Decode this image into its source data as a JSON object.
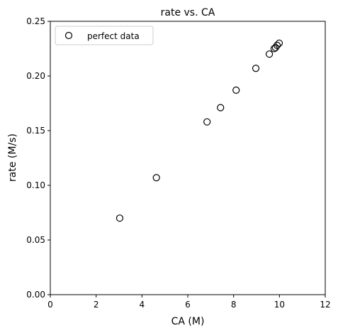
{
  "chart_data": {
    "type": "scatter",
    "title": "rate vs. CA",
    "xlabel": "CA (M)",
    "ylabel": "rate (M/s)",
    "xlim": [
      0,
      12
    ],
    "ylim": [
      0,
      0.25
    ],
    "xticks": [
      0,
      2,
      4,
      6,
      8,
      10,
      12
    ],
    "yticks": [
      0.0,
      0.05,
      0.1,
      0.15,
      0.2,
      0.25
    ],
    "xtick_labels": [
      "0",
      "2",
      "4",
      "6",
      "8",
      "10",
      "12"
    ],
    "ytick_labels": [
      "0.00",
      "0.05",
      "0.10",
      "0.15",
      "0.20",
      "0.25"
    ],
    "grid": false,
    "legend_position": "top-left",
    "series": [
      {
        "name": "perfect data",
        "marker": "open-circle",
        "color": "#000000",
        "x": [
          3.03,
          4.63,
          6.84,
          7.43,
          8.11,
          8.97,
          9.56,
          9.77,
          9.83,
          9.9,
          9.99
        ],
        "y": [
          0.07,
          0.107,
          0.158,
          0.171,
          0.187,
          0.207,
          0.22,
          0.225,
          0.226,
          0.228,
          0.23
        ]
      }
    ]
  }
}
